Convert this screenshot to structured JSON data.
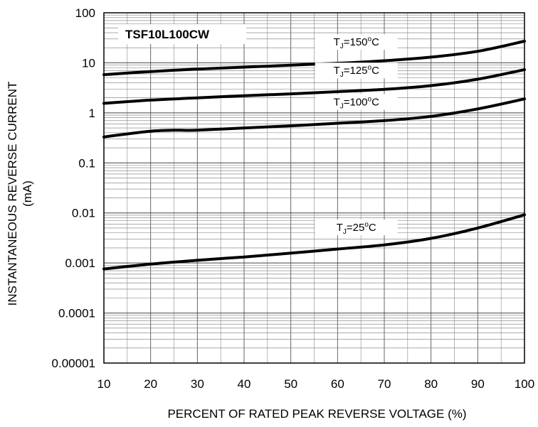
{
  "chart_data": {
    "type": "line",
    "title": "TSF10L100CW",
    "xlabel": "PERCENT OF RATED PEAK REVERSE VOLTAGE (%)",
    "ylabel": "INSTANTANEOUS REVERSE CURRENT",
    "ylabel_unit": "(mA)",
    "x_scale": "linear",
    "y_scale": "log",
    "xlim": [
      10,
      100
    ],
    "ylim": [
      1e-05,
      100
    ],
    "grid": true,
    "x_ticks": [
      "10",
      "20",
      "30",
      "40",
      "50",
      "60",
      "70",
      "80",
      "90",
      "100"
    ],
    "y_ticks": [
      "100",
      "10",
      "1",
      "0.1",
      "0.01",
      "0.001",
      "0.0001",
      "0.00001"
    ],
    "series": [
      {
        "name": "TJ=150oC",
        "label_sub": "J",
        "label_temp": "150",
        "x": [
          10,
          20,
          30,
          40,
          50,
          60,
          70,
          80,
          90,
          100
        ],
        "values": [
          5.8,
          6.7,
          7.5,
          8.2,
          9.0,
          9.8,
          11.0,
          13.0,
          17.0,
          27.0
        ]
      },
      {
        "name": "TJ=125oC",
        "label_sub": "J",
        "label_temp": "125",
        "x": [
          10,
          20,
          30,
          40,
          50,
          60,
          70,
          80,
          90,
          100
        ],
        "values": [
          1.55,
          1.8,
          2.0,
          2.2,
          2.4,
          2.65,
          2.95,
          3.5,
          4.7,
          7.3
        ]
      },
      {
        "name": "TJ=100oC",
        "label_sub": "J",
        "label_temp": "100",
        "x": [
          10,
          15,
          20,
          25,
          30,
          40,
          50,
          60,
          70,
          80,
          90,
          100
        ],
        "values": [
          0.33,
          0.38,
          0.43,
          0.45,
          0.45,
          0.5,
          0.55,
          0.62,
          0.7,
          0.85,
          1.2,
          1.9
        ]
      },
      {
        "name": "TJ=25oC",
        "label_sub": "J",
        "label_temp": "25",
        "x": [
          10,
          20,
          30,
          40,
          50,
          60,
          70,
          80,
          90,
          100
        ],
        "values": [
          0.00076,
          0.00095,
          0.00113,
          0.00132,
          0.00157,
          0.0019,
          0.0023,
          0.0031,
          0.005,
          0.0092
        ]
      }
    ]
  }
}
